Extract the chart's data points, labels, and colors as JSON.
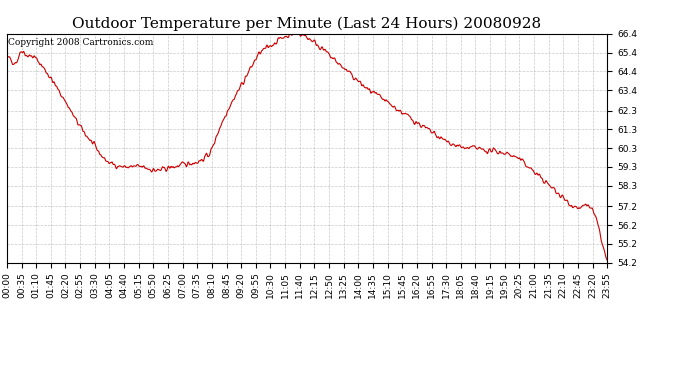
{
  "title": "Outdoor Temperature per Minute (Last 24 Hours) 20080928",
  "copyright_text": "Copyright 2008 Cartronics.com",
  "line_color": "#cc0000",
  "background_color": "#ffffff",
  "plot_bg_color": "#ffffff",
  "grid_color": "#bbbbbb",
  "ylim": [
    54.2,
    66.4
  ],
  "yticks": [
    54.2,
    55.2,
    56.2,
    57.2,
    58.3,
    59.3,
    60.3,
    61.3,
    62.3,
    63.4,
    64.4,
    65.4,
    66.4
  ],
  "xtick_labels": [
    "00:00",
    "00:35",
    "01:10",
    "01:45",
    "02:20",
    "02:55",
    "03:30",
    "04:05",
    "04:40",
    "05:15",
    "05:50",
    "06:25",
    "07:00",
    "07:35",
    "08:10",
    "08:45",
    "09:20",
    "09:55",
    "10:30",
    "11:05",
    "11:40",
    "12:15",
    "12:50",
    "13:25",
    "14:00",
    "14:35",
    "15:10",
    "15:45",
    "16:20",
    "16:55",
    "17:30",
    "18:05",
    "18:40",
    "19:15",
    "19:50",
    "20:25",
    "21:00",
    "21:35",
    "22:10",
    "22:45",
    "23:20",
    "23:55"
  ],
  "keypoints_x": [
    0,
    5,
    15,
    25,
    35,
    45,
    60,
    80,
    100,
    120,
    140,
    160,
    180,
    200,
    220,
    240,
    260,
    280,
    300,
    320,
    340,
    360,
    380,
    400,
    420,
    440,
    460,
    480,
    490,
    500,
    510,
    520,
    530,
    540,
    550,
    560,
    570,
    580,
    590,
    600,
    620,
    640,
    660,
    680,
    700,
    720,
    740,
    760,
    780,
    800,
    820,
    840,
    860,
    880,
    900,
    920,
    940,
    960,
    980,
    1000,
    1020,
    1040,
    1060,
    1080,
    1100,
    1120,
    1140,
    1160,
    1180,
    1200,
    1220,
    1240,
    1260,
    1280,
    1300,
    1320,
    1340,
    1360,
    1380,
    1400,
    1420,
    1438
  ],
  "keypoints_y": [
    65.0,
    65.1,
    64.9,
    65.0,
    65.5,
    65.3,
    65.2,
    64.8,
    64.2,
    63.5,
    62.8,
    62.0,
    61.3,
    60.7,
    60.1,
    59.6,
    59.4,
    59.3,
    59.3,
    59.3,
    59.2,
    59.1,
    59.2,
    59.3,
    59.4,
    59.5,
    59.6,
    59.9,
    60.2,
    60.8,
    61.4,
    61.9,
    62.4,
    62.8,
    63.2,
    63.6,
    64.0,
    64.4,
    64.8,
    65.2,
    65.6,
    65.9,
    66.2,
    66.35,
    66.4,
    66.2,
    65.9,
    65.5,
    65.1,
    64.7,
    64.3,
    63.9,
    63.5,
    63.2,
    62.9,
    62.6,
    62.3,
    62.0,
    61.7,
    61.4,
    61.1,
    60.8,
    60.6,
    60.4,
    60.3,
    60.3,
    60.2,
    60.15,
    60.1,
    60.0,
    59.8,
    59.5,
    59.1,
    58.7,
    58.3,
    57.9,
    57.5,
    57.2,
    57.15,
    57.1,
    55.8,
    54.2
  ],
  "total_minutes": 1438,
  "line_width": 0.8,
  "title_fontsize": 11,
  "tick_fontsize": 6.5,
  "copyright_fontsize": 6.5,
  "noise_seed": 42,
  "noise_std": 0.15,
  "noise_sigma": 1.5
}
